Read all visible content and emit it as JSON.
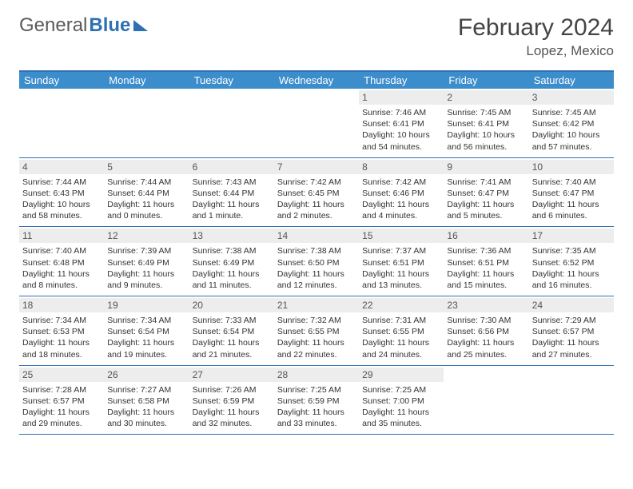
{
  "brand": {
    "text_gray": "General",
    "text_blue": "Blue"
  },
  "header": {
    "title": "February 2024",
    "location": "Lopez, Mexico"
  },
  "colors": {
    "accent": "#2f6fb3",
    "header_bg": "#3c8dcc",
    "daynum_bg": "#ededed",
    "text": "#333333"
  },
  "day_labels": [
    "Sunday",
    "Monday",
    "Tuesday",
    "Wednesday",
    "Thursday",
    "Friday",
    "Saturday"
  ],
  "layout": {
    "first_weekday_index": 4,
    "days_in_month": 29
  },
  "days": {
    "1": {
      "sunrise": "Sunrise: 7:46 AM",
      "sunset": "Sunset: 6:41 PM",
      "daylight": "Daylight: 10 hours and 54 minutes."
    },
    "2": {
      "sunrise": "Sunrise: 7:45 AM",
      "sunset": "Sunset: 6:41 PM",
      "daylight": "Daylight: 10 hours and 56 minutes."
    },
    "3": {
      "sunrise": "Sunrise: 7:45 AM",
      "sunset": "Sunset: 6:42 PM",
      "daylight": "Daylight: 10 hours and 57 minutes."
    },
    "4": {
      "sunrise": "Sunrise: 7:44 AM",
      "sunset": "Sunset: 6:43 PM",
      "daylight": "Daylight: 10 hours and 58 minutes."
    },
    "5": {
      "sunrise": "Sunrise: 7:44 AM",
      "sunset": "Sunset: 6:44 PM",
      "daylight": "Daylight: 11 hours and 0 minutes."
    },
    "6": {
      "sunrise": "Sunrise: 7:43 AM",
      "sunset": "Sunset: 6:44 PM",
      "daylight": "Daylight: 11 hours and 1 minute."
    },
    "7": {
      "sunrise": "Sunrise: 7:42 AM",
      "sunset": "Sunset: 6:45 PM",
      "daylight": "Daylight: 11 hours and 2 minutes."
    },
    "8": {
      "sunrise": "Sunrise: 7:42 AM",
      "sunset": "Sunset: 6:46 PM",
      "daylight": "Daylight: 11 hours and 4 minutes."
    },
    "9": {
      "sunrise": "Sunrise: 7:41 AM",
      "sunset": "Sunset: 6:47 PM",
      "daylight": "Daylight: 11 hours and 5 minutes."
    },
    "10": {
      "sunrise": "Sunrise: 7:40 AM",
      "sunset": "Sunset: 6:47 PM",
      "daylight": "Daylight: 11 hours and 6 minutes."
    },
    "11": {
      "sunrise": "Sunrise: 7:40 AM",
      "sunset": "Sunset: 6:48 PM",
      "daylight": "Daylight: 11 hours and 8 minutes."
    },
    "12": {
      "sunrise": "Sunrise: 7:39 AM",
      "sunset": "Sunset: 6:49 PM",
      "daylight": "Daylight: 11 hours and 9 minutes."
    },
    "13": {
      "sunrise": "Sunrise: 7:38 AM",
      "sunset": "Sunset: 6:49 PM",
      "daylight": "Daylight: 11 hours and 11 minutes."
    },
    "14": {
      "sunrise": "Sunrise: 7:38 AM",
      "sunset": "Sunset: 6:50 PM",
      "daylight": "Daylight: 11 hours and 12 minutes."
    },
    "15": {
      "sunrise": "Sunrise: 7:37 AM",
      "sunset": "Sunset: 6:51 PM",
      "daylight": "Daylight: 11 hours and 13 minutes."
    },
    "16": {
      "sunrise": "Sunrise: 7:36 AM",
      "sunset": "Sunset: 6:51 PM",
      "daylight": "Daylight: 11 hours and 15 minutes."
    },
    "17": {
      "sunrise": "Sunrise: 7:35 AM",
      "sunset": "Sunset: 6:52 PM",
      "daylight": "Daylight: 11 hours and 16 minutes."
    },
    "18": {
      "sunrise": "Sunrise: 7:34 AM",
      "sunset": "Sunset: 6:53 PM",
      "daylight": "Daylight: 11 hours and 18 minutes."
    },
    "19": {
      "sunrise": "Sunrise: 7:34 AM",
      "sunset": "Sunset: 6:54 PM",
      "daylight": "Daylight: 11 hours and 19 minutes."
    },
    "20": {
      "sunrise": "Sunrise: 7:33 AM",
      "sunset": "Sunset: 6:54 PM",
      "daylight": "Daylight: 11 hours and 21 minutes."
    },
    "21": {
      "sunrise": "Sunrise: 7:32 AM",
      "sunset": "Sunset: 6:55 PM",
      "daylight": "Daylight: 11 hours and 22 minutes."
    },
    "22": {
      "sunrise": "Sunrise: 7:31 AM",
      "sunset": "Sunset: 6:55 PM",
      "daylight": "Daylight: 11 hours and 24 minutes."
    },
    "23": {
      "sunrise": "Sunrise: 7:30 AM",
      "sunset": "Sunset: 6:56 PM",
      "daylight": "Daylight: 11 hours and 25 minutes."
    },
    "24": {
      "sunrise": "Sunrise: 7:29 AM",
      "sunset": "Sunset: 6:57 PM",
      "daylight": "Daylight: 11 hours and 27 minutes."
    },
    "25": {
      "sunrise": "Sunrise: 7:28 AM",
      "sunset": "Sunset: 6:57 PM",
      "daylight": "Daylight: 11 hours and 29 minutes."
    },
    "26": {
      "sunrise": "Sunrise: 7:27 AM",
      "sunset": "Sunset: 6:58 PM",
      "daylight": "Daylight: 11 hours and 30 minutes."
    },
    "27": {
      "sunrise": "Sunrise: 7:26 AM",
      "sunset": "Sunset: 6:59 PM",
      "daylight": "Daylight: 11 hours and 32 minutes."
    },
    "28": {
      "sunrise": "Sunrise: 7:25 AM",
      "sunset": "Sunset: 6:59 PM",
      "daylight": "Daylight: 11 hours and 33 minutes."
    },
    "29": {
      "sunrise": "Sunrise: 7:25 AM",
      "sunset": "Sunset: 7:00 PM",
      "daylight": "Daylight: 11 hours and 35 minutes."
    }
  }
}
